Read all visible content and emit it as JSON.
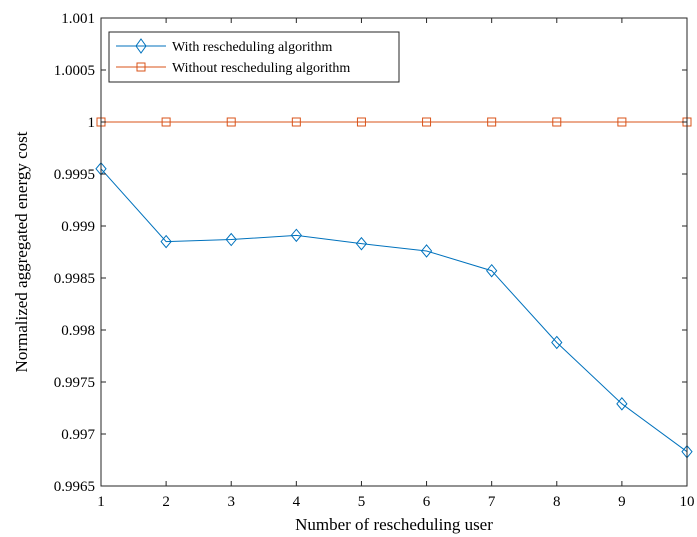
{
  "chart_data": {
    "type": "line",
    "title": "",
    "xlabel": "Number of rescheduling user",
    "ylabel": "Normalized aggregated energy cost",
    "xlim": [
      1,
      10
    ],
    "ylim": [
      0.9965,
      1.001
    ],
    "x": [
      1,
      2,
      3,
      4,
      5,
      6,
      7,
      8,
      9,
      10
    ],
    "x_tick_labels": [
      "1",
      "2",
      "3",
      "4",
      "5",
      "6",
      "7",
      "8",
      "9",
      "10"
    ],
    "y_ticks": [
      0.9965,
      0.997,
      0.9975,
      0.998,
      0.9985,
      0.999,
      0.9995,
      1,
      1.0005,
      1.001
    ],
    "y_tick_labels": [
      "0.9965",
      "0.997",
      "0.9975",
      "0.998",
      "0.9985",
      "0.999",
      "0.9995",
      "1",
      "1.0005",
      "1.001"
    ],
    "grid": false,
    "legend_position": "top-left",
    "series": [
      {
        "name": "With rescheduling algorithm",
        "color": "#0072BD",
        "marker": "diamond",
        "values": [
          0.99955,
          0.99885,
          0.99887,
          0.99891,
          0.99883,
          0.99876,
          0.99857,
          0.99788,
          0.99729,
          0.99683
        ]
      },
      {
        "name": "Without rescheduling algorithm",
        "color": "#D95319",
        "marker": "square",
        "values": [
          1,
          1,
          1,
          1,
          1,
          1,
          1,
          1,
          1,
          1
        ]
      }
    ]
  }
}
